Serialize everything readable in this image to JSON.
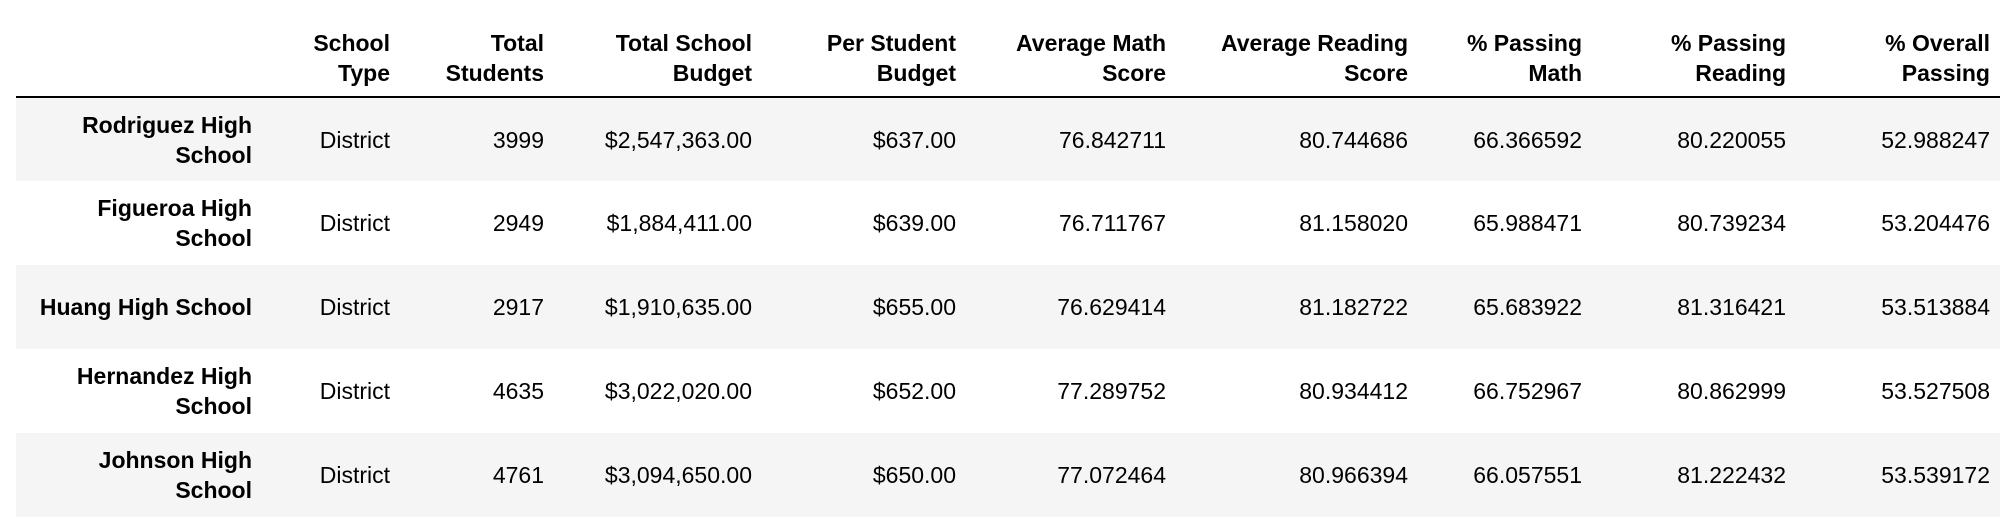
{
  "table": {
    "index_header": "",
    "columns": [
      "School Type",
      "Total Students",
      "Total School Budget",
      "Per Student Budget",
      "Average Math Score",
      "Average Reading Score",
      "% Passing Math",
      "% Passing Reading",
      "% Overall Passing"
    ],
    "rows": [
      {
        "index": "Rodriguez High School",
        "cells": [
          "District",
          "3999",
          "$2,547,363.00",
          "$637.00",
          "76.842711",
          "80.744686",
          "66.366592",
          "80.220055",
          "52.988247"
        ]
      },
      {
        "index": "Figueroa High School",
        "cells": [
          "District",
          "2949",
          "$1,884,411.00",
          "$639.00",
          "76.711767",
          "81.158020",
          "65.988471",
          "80.739234",
          "53.204476"
        ]
      },
      {
        "index": "Huang High School",
        "cells": [
          "District",
          "2917",
          "$1,910,635.00",
          "$655.00",
          "76.629414",
          "81.182722",
          "65.683922",
          "81.316421",
          "53.513884"
        ]
      },
      {
        "index": "Hernandez High School",
        "cells": [
          "District",
          "4635",
          "$3,022,020.00",
          "$652.00",
          "77.289752",
          "80.934412",
          "66.752967",
          "80.862999",
          "53.527508"
        ]
      },
      {
        "index": "Johnson High School",
        "cells": [
          "District",
          "4761",
          "$3,094,650.00",
          "$650.00",
          "77.072464",
          "80.966394",
          "66.057551",
          "81.222432",
          "53.539172"
        ]
      }
    ]
  },
  "colors": {
    "odd_row_background": "#f5f5f5",
    "even_row_background": "#ffffff",
    "header_rule": "#000000",
    "text": "#000000"
  }
}
